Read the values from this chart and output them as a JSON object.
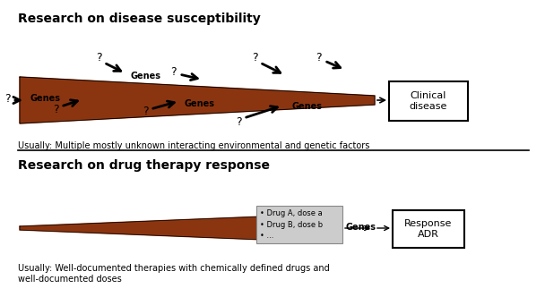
{
  "title_top": "Research on disease susceptibility",
  "title_bottom": "Research on drug therapy response",
  "subtitle_top": "Usually: Multiple mostly unknown interacting environmental and genetic factors",
  "subtitle_bottom": "Usually: Well-documented therapies with chemically defined drugs and\nwell-documented doses",
  "funnel_color": "#8B3510",
  "background": "#ffffff",
  "clinical_box_text": "Clinical\ndisease",
  "response_box_text": "Response\nADR",
  "drug_box_text": "• Drug A, dose a\n• Drug B, dose b\n• ...",
  "genes_label": "Genes",
  "title_fontsize": 10,
  "label_fontsize": 8,
  "small_fontsize": 7,
  "subtitle_fontsize": 7
}
